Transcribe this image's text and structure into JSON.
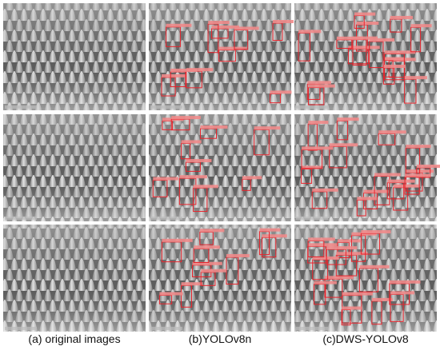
{
  "figure": {
    "captions": [
      "(a) original images",
      "(b)YOLOv8n",
      "(c)DWS-YOLOv8"
    ]
  }
}
